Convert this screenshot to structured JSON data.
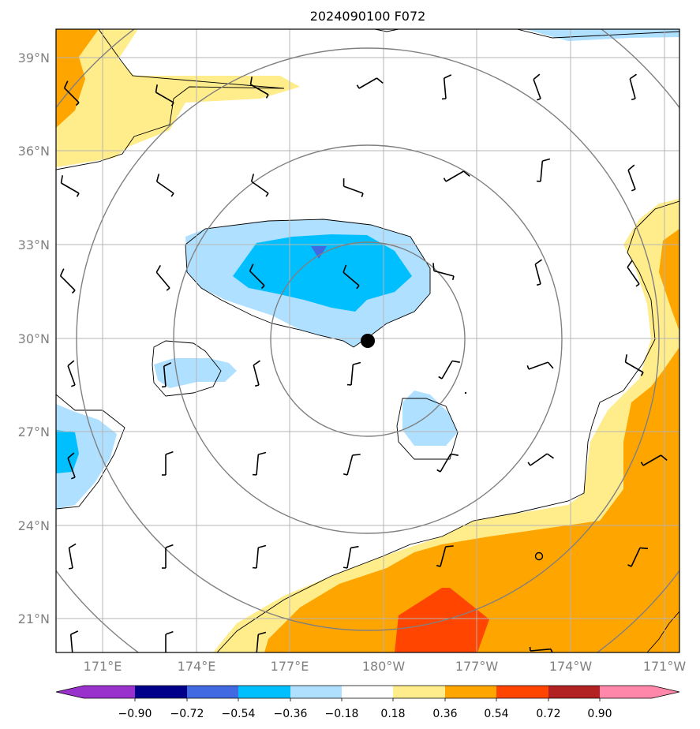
{
  "title": "2024090100 F072",
  "lat_labels": [
    "39°N",
    "36°N",
    "33°N",
    "30°N",
    "27°N",
    "24°N",
    "21°N"
  ],
  "lon_labels": [
    "171°E",
    "174°E",
    "177°E",
    "180°W",
    "177°W",
    "174°W",
    "171°W"
  ],
  "colorbar": {
    "tick_labels": [
      "−0.90",
      "−0.72",
      "−0.54",
      "−0.36",
      "−0.18",
      "0.18",
      "0.36",
      "0.54",
      "0.72",
      "0.90"
    ],
    "colors": [
      "#9932cc",
      "#00008b",
      "#4169e1",
      "#00bfff",
      "#b0e0ff",
      "#ffffff",
      "#ffec8b",
      "#ffa500",
      "#ff4500",
      "#b22222",
      "#ff88aa"
    ]
  },
  "colors": {
    "grid": "#b4b4b4",
    "circle": "#808080",
    "barb": "#000000",
    "storm_center": "#000000"
  }
}
